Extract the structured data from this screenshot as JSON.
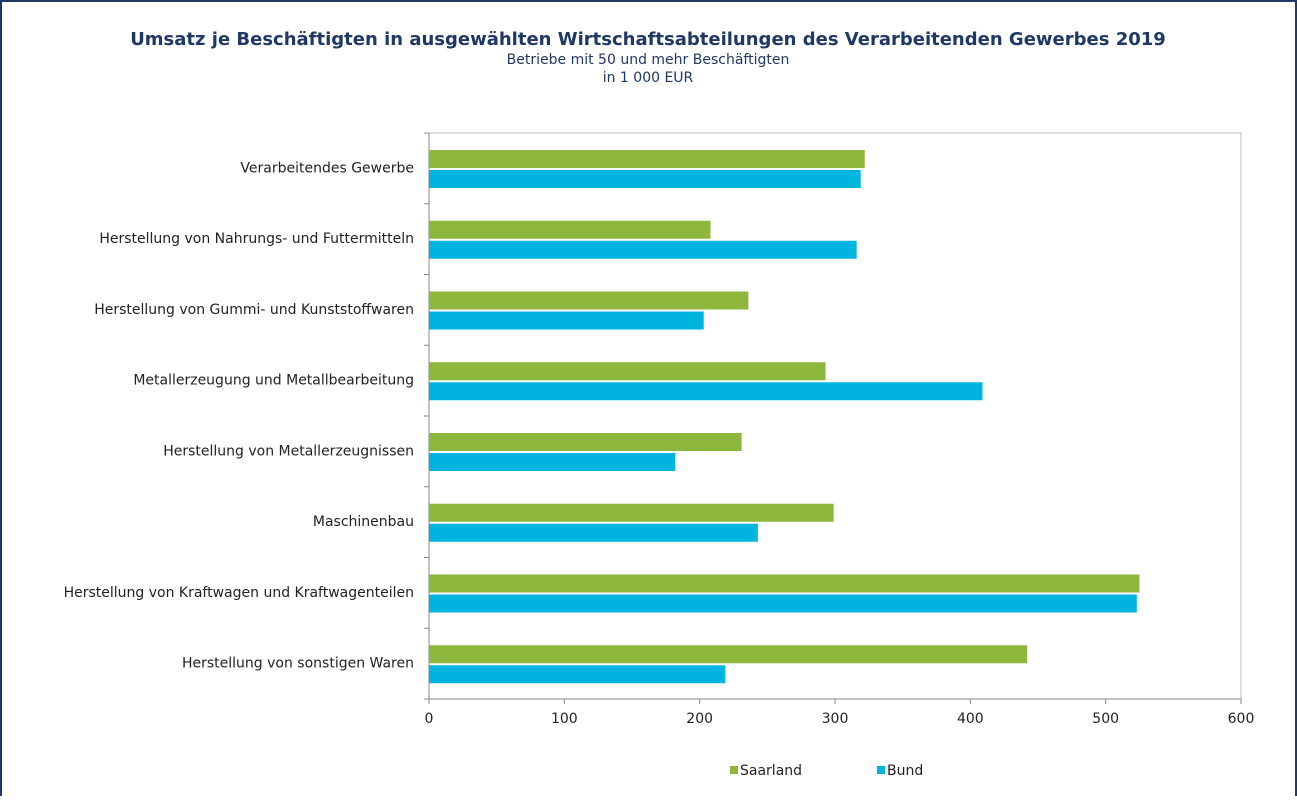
{
  "chart_data": {
    "type": "barh",
    "title": "Umsatz je Beschäftigten in ausgewählten Wirtschaftsabteilungen des Verarbeitenden Gewerbes 2019",
    "subtitle": [
      "Betriebe mit 50 und mehr Beschäftigten",
      "in 1 000 EUR"
    ],
    "categories": [
      "Verarbeitendes Gewerbe",
      "Herstellung von Nahrungs- und Futtermitteln",
      "Herstellung von Gummi- und Kunststoffwaren",
      "Metallerzeugung und Metallbearbeitung",
      "Herstellung von Metallerzeugnissen",
      "Maschinenbau",
      "Herstellung von Kraftwagen und Kraftwagenteilen",
      "Herstellung von sonstigen Waren"
    ],
    "series": [
      {
        "name": "Saarland",
        "color": "#8db63c",
        "values": [
          322,
          208,
          236,
          293,
          231,
          299,
          525,
          442
        ]
      },
      {
        "name": "Bund",
        "color": "#00b4e0",
        "values": [
          319,
          316,
          203,
          409,
          182,
          243,
          523,
          219
        ]
      }
    ],
    "xlim": [
      0,
      600
    ],
    "xticks": [
      0,
      100,
      200,
      300,
      400,
      500,
      600
    ],
    "legend": "bottom"
  }
}
